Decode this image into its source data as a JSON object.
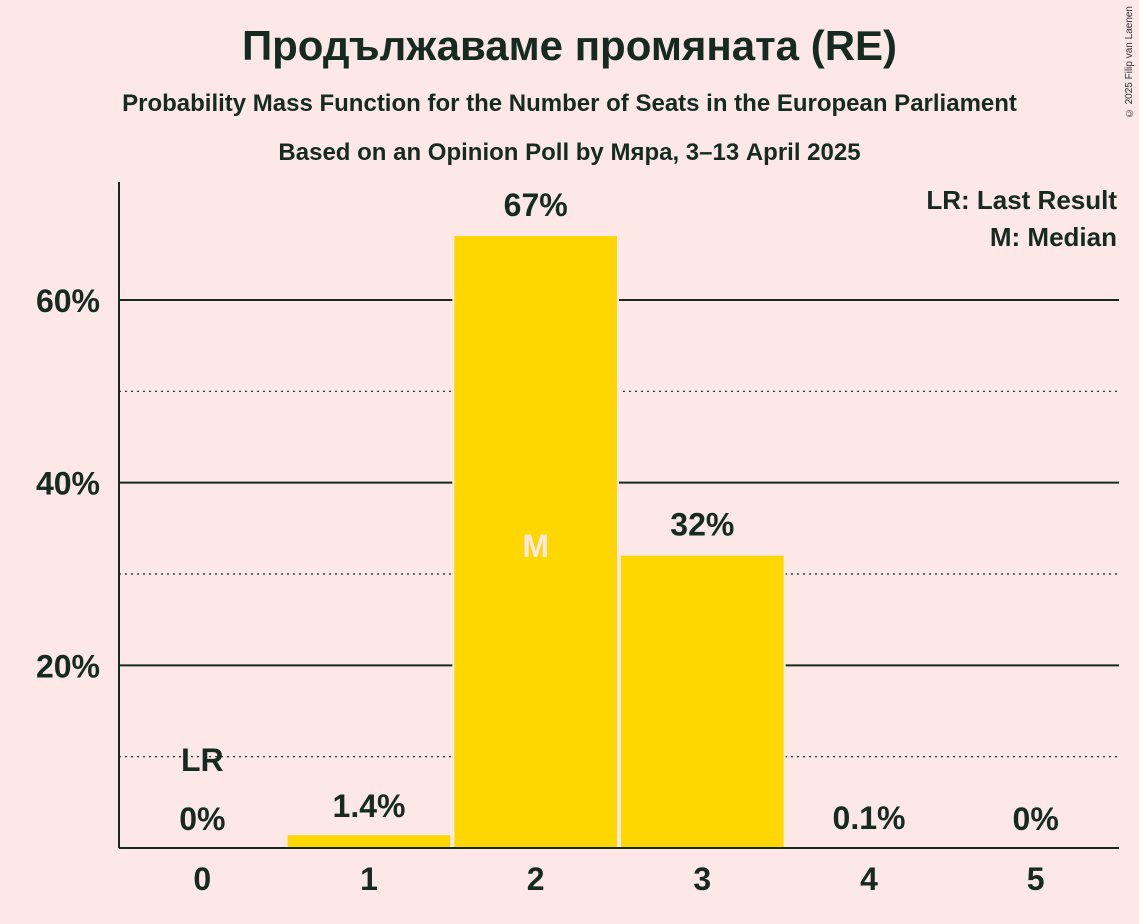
{
  "chart_data": {
    "type": "bar",
    "title": "Продължаваме промяната (RE)",
    "subtitle": "Probability Mass Function for the Number of Seats in the European Parliament",
    "subtitle2": "Based on an Opinion Poll by Мяра, 3–13 April 2025",
    "categories": [
      "0",
      "1",
      "2",
      "3",
      "4",
      "5"
    ],
    "values": [
      0,
      1.4,
      67,
      32,
      0.1,
      0
    ],
    "data_labels": [
      "0%",
      "1.4%",
      "67%",
      "32%",
      "0.1%",
      "0%"
    ],
    "ylim": [
      0,
      73
    ],
    "yticks": [
      {
        "value": 20,
        "label": "20%"
      },
      {
        "value": 40,
        "label": "40%"
      },
      {
        "value": 60,
        "label": "60%"
      }
    ],
    "minor_gridlines": [
      10,
      30,
      50
    ],
    "last_result": {
      "index": 0,
      "label": "LR"
    },
    "median": {
      "index": 2,
      "label": "M"
    },
    "legend": [
      "LR: Last Result",
      "M: Median"
    ],
    "legend_position": "top-right",
    "colors": {
      "bar": "#ffd700",
      "text": "#152b20",
      "background": "#fde7e7"
    },
    "copyright": "© 2025 Filip van Laenen"
  }
}
